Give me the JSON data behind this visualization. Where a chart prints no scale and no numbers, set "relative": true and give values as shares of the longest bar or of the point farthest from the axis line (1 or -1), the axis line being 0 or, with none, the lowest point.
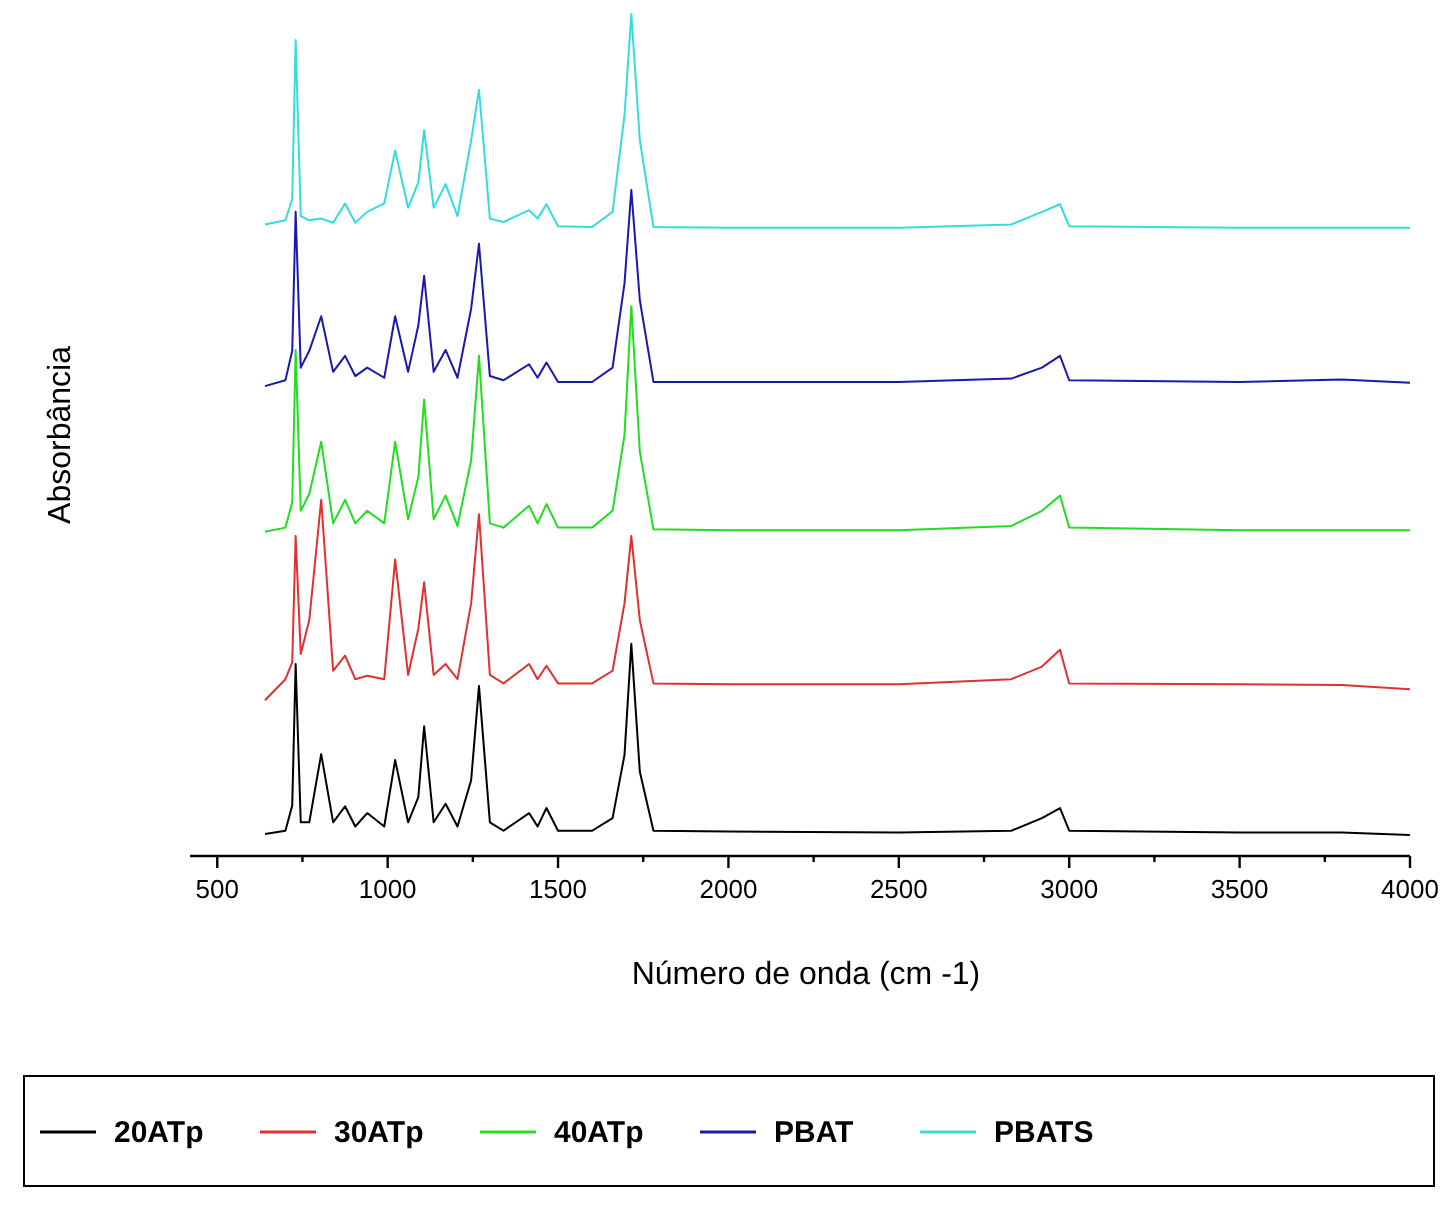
{
  "chart_data": {
    "type": "line",
    "relative": true,
    "xlabel": "Número de onda (cm -1)",
    "ylabel": "Absorbância",
    "legend": "bottom",
    "marker": "none",
    "line_style": "solid",
    "xlim": [
      420,
      4000
    ],
    "xticks": [
      500,
      {
        "value": 750,
        "label": null
      },
      1000,
      {
        "value": 1250,
        "label": null
      },
      1500,
      {
        "value": 1750,
        "label": null
      },
      2000,
      {
        "value": 2250,
        "label": null
      },
      2500,
      {
        "value": 2750,
        "label": null
      },
      3000,
      {
        "value": 3250,
        "label": null
      },
      3500,
      {
        "value": 3750,
        "label": null
      },
      4000
    ],
    "x": [
      640,
      700,
      720,
      730,
      745,
      770,
      805,
      840,
      875,
      905,
      940,
      990,
      1022,
      1060,
      1090,
      1107,
      1135,
      1170,
      1205,
      1245,
      1268,
      1300,
      1340,
      1415,
      1440,
      1466,
      1500,
      1600,
      1660,
      1695,
      1715,
      1740,
      1780,
      2000,
      2500,
      2830,
      2920,
      2973,
      3000,
      3500,
      3800,
      4000
    ],
    "series": [
      {
        "name": "20ATp",
        "color": "#000000",
        "values": [
          0.026,
          0.03,
          0.06,
          0.228,
          0.04,
          0.04,
          0.121,
          0.04,
          0.059,
          0.035,
          0.051,
          0.035,
          0.114,
          0.04,
          0.07,
          0.154,
          0.04,
          0.062,
          0.035,
          0.09,
          0.202,
          0.04,
          0.03,
          0.051,
          0.035,
          0.057,
          0.03,
          0.03,
          0.045,
          0.12,
          0.252,
          0.1,
          0.03,
          0.029,
          0.028,
          0.03,
          0.045,
          0.057,
          0.03,
          0.028,
          0.028,
          0.025
        ]
      },
      {
        "name": "30ATp",
        "color": "#e03030",
        "values": [
          0.185,
          0.21,
          0.23,
          0.38,
          0.24,
          0.28,
          0.423,
          0.22,
          0.238,
          0.21,
          0.214,
          0.21,
          0.352,
          0.215,
          0.27,
          0.325,
          0.215,
          0.228,
          0.21,
          0.3,
          0.406,
          0.215,
          0.205,
          0.228,
          0.21,
          0.226,
          0.205,
          0.205,
          0.22,
          0.3,
          0.38,
          0.28,
          0.205,
          0.204,
          0.204,
          0.21,
          0.225,
          0.245,
          0.205,
          0.204,
          0.203,
          0.198
        ]
      },
      {
        "name": "40ATp",
        "color": "#22dd22",
        "values": [
          0.385,
          0.39,
          0.42,
          0.601,
          0.41,
          0.43,
          0.492,
          0.395,
          0.423,
          0.395,
          0.41,
          0.395,
          0.492,
          0.4,
          0.45,
          0.542,
          0.4,
          0.428,
          0.392,
          0.47,
          0.594,
          0.395,
          0.39,
          0.416,
          0.395,
          0.418,
          0.39,
          0.39,
          0.41,
          0.5,
          0.653,
          0.48,
          0.388,
          0.387,
          0.387,
          0.392,
          0.41,
          0.428,
          0.39,
          0.387,
          0.387,
          0.387
        ]
      },
      {
        "name": "PBAT",
        "color": "#1a1aaa",
        "values": [
          0.558,
          0.565,
          0.6,
          0.765,
          0.58,
          0.6,
          0.641,
          0.575,
          0.594,
          0.57,
          0.58,
          0.568,
          0.641,
          0.575,
          0.63,
          0.689,
          0.575,
          0.601,
          0.568,
          0.65,
          0.727,
          0.57,
          0.565,
          0.584,
          0.568,
          0.586,
          0.563,
          0.563,
          0.58,
          0.68,
          0.791,
          0.66,
          0.563,
          0.563,
          0.563,
          0.567,
          0.58,
          0.594,
          0.565,
          0.563,
          0.566,
          0.562
        ]
      },
      {
        "name": "PBATS",
        "color": "#33dddd",
        "values": [
          0.75,
          0.755,
          0.78,
          0.969,
          0.76,
          0.755,
          0.757,
          0.752,
          0.775,
          0.752,
          0.765,
          0.775,
          0.838,
          0.77,
          0.8,
          0.862,
          0.77,
          0.798,
          0.76,
          0.85,
          0.91,
          0.757,
          0.753,
          0.767,
          0.757,
          0.774,
          0.748,
          0.747,
          0.765,
          0.88,
          1.0,
          0.85,
          0.747,
          0.746,
          0.746,
          0.75,
          0.765,
          0.774,
          0.748,
          0.746,
          0.746,
          0.746
        ]
      }
    ]
  }
}
